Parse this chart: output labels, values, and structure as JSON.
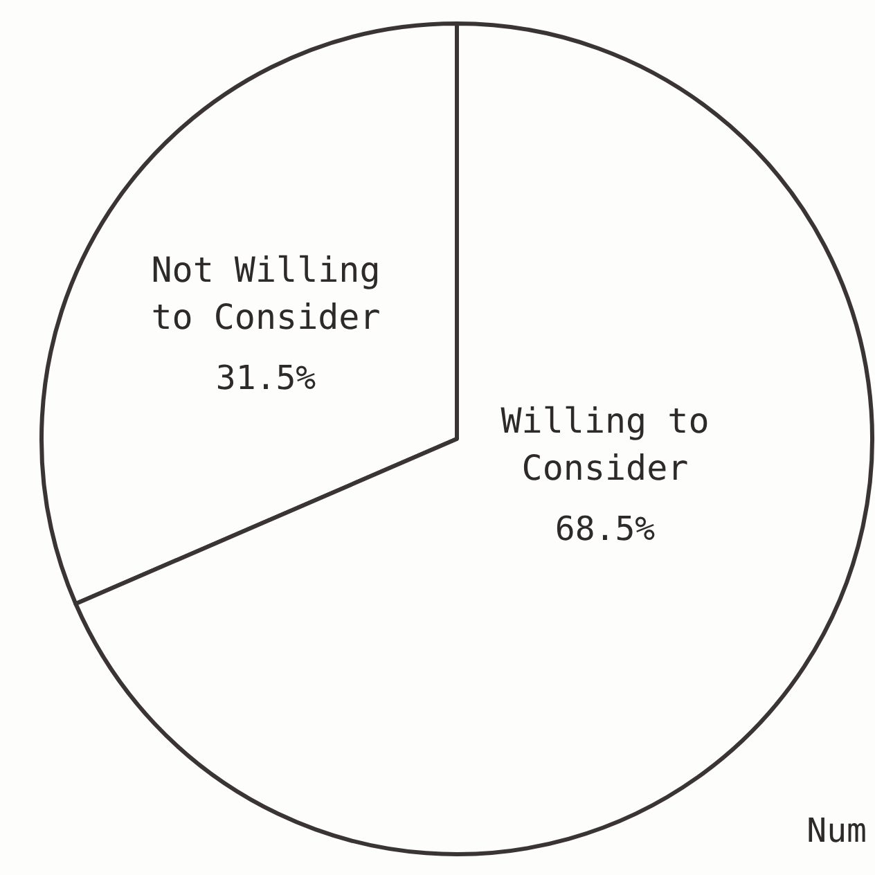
{
  "chart_data": {
    "type": "pie",
    "categories": [
      "Not Willing to Consider",
      "Willing to Consider"
    ],
    "values": [
      31.5,
      68.5
    ],
    "colors": [
      "#fdfdfb",
      "#fdfdfb"
    ],
    "value_labels": [
      "31.5%",
      "68.5%"
    ],
    "legend": false,
    "annotations": [
      "Num"
    ]
  }
}
